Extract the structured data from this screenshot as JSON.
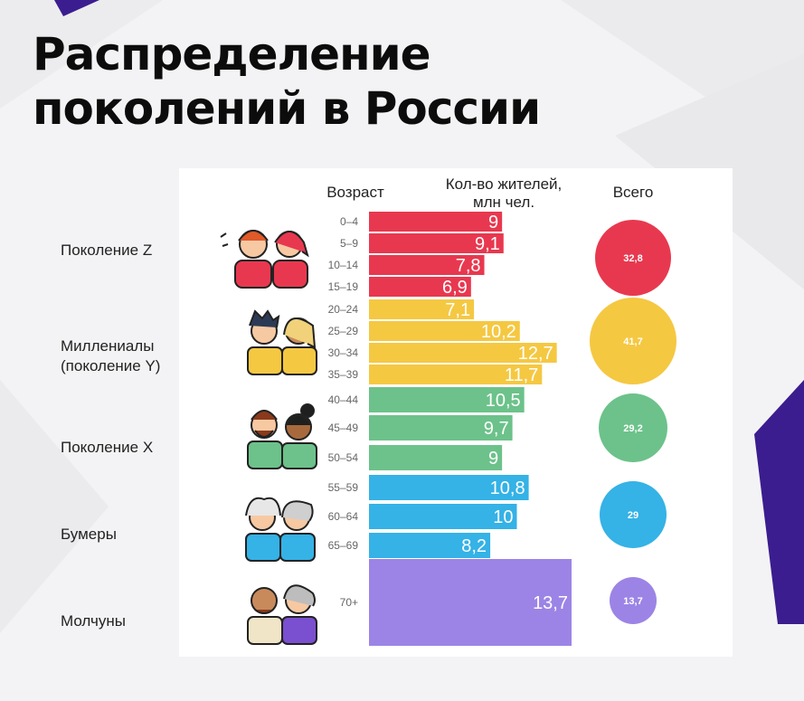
{
  "title_line1": "Распределение",
  "title_line2": "поколений в России",
  "headers": {
    "age": "Возраст",
    "residents": "Кол-во жителей,\nмлн чел.",
    "total": "Всего"
  },
  "colors": {
    "z": "#e8384f",
    "millennials": "#f5c842",
    "x": "#6cc28a",
    "boomers": "#35b2e6",
    "silent": "#9c84e6",
    "accent_purple": "#3b1d8f"
  },
  "chart_data": {
    "type": "bar",
    "orientation": "horizontal",
    "xlabel": "Кол-во жителей, млн чел.",
    "ylabel": "Возраст",
    "categories": [
      "0–4",
      "5–9",
      "10–14",
      "15–19",
      "20–24",
      "25–29",
      "30–34",
      "35–39",
      "40–44",
      "45–49",
      "50–54",
      "55–59",
      "60–64",
      "65–69",
      "70+"
    ],
    "values": [
      9,
      9.1,
      7.8,
      6.9,
      7.1,
      10.2,
      12.7,
      11.7,
      10.5,
      9.7,
      9,
      10.8,
      10,
      8.2,
      13.7
    ],
    "value_labels": [
      "9",
      "9,1",
      "7,8",
      "6,9",
      "7,1",
      "10,2",
      "12,7",
      "11,7",
      "10,5",
      "9,7",
      "9",
      "10,8",
      "10",
      "8,2",
      "13,7"
    ],
    "groups": [
      {
        "name": "Поколение Z",
        "color_key": "z",
        "range": [
          0,
          3
        ],
        "total": "32,8"
      },
      {
        "name": "Миллениалы\n(поколение Y)",
        "color_key": "millennials",
        "range": [
          4,
          7
        ],
        "total": "41,7"
      },
      {
        "name": "Поколение X",
        "color_key": "x",
        "range": [
          8,
          10
        ],
        "total": "29,2"
      },
      {
        "name": "Бумеры",
        "color_key": "boomers",
        "range": [
          11,
          13
        ],
        "total": "29"
      },
      {
        "name": "Молчуны",
        "color_key": "silent",
        "range": [
          14,
          14
        ],
        "total": "13,7"
      }
    ],
    "grid": false,
    "legend": "none"
  }
}
